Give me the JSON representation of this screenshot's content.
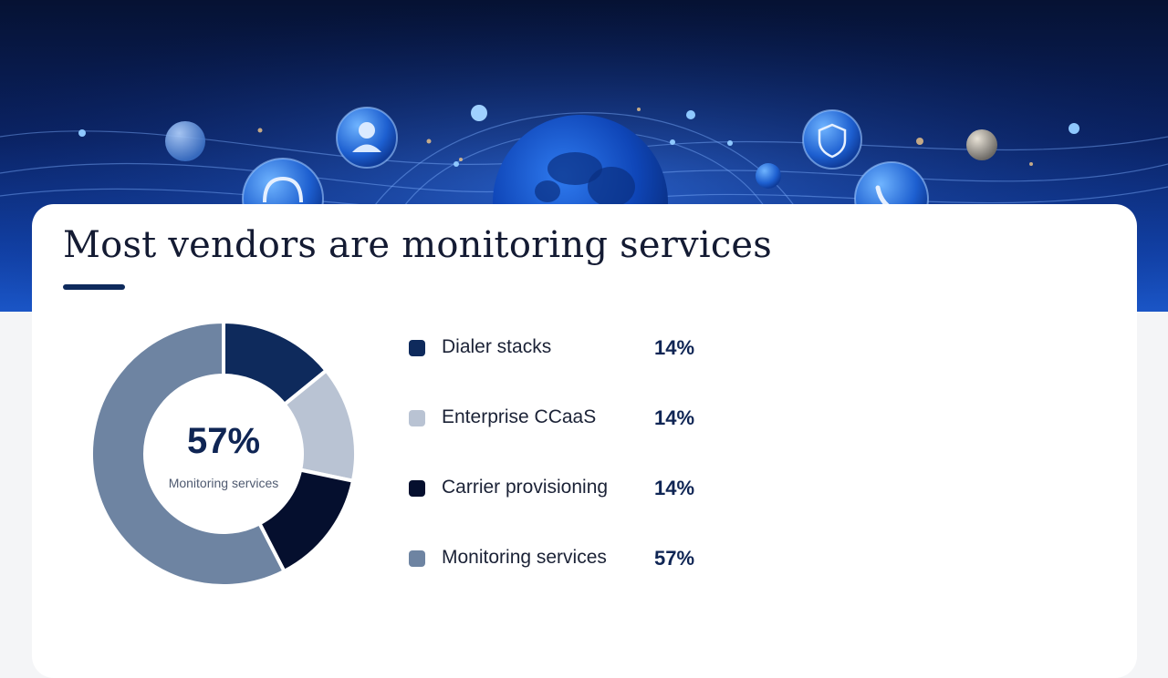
{
  "header": {
    "icons": [
      "headset-icon",
      "user-icon",
      "globe-icon",
      "shield-icon",
      "phone-icon"
    ]
  },
  "page": {
    "title": "Most vendors are monitoring services"
  },
  "chart_data": {
    "type": "pie",
    "style": "donut",
    "title": "Most vendors are monitoring services",
    "center": {
      "value": "57%",
      "label": "Monitoring services"
    },
    "categories": [
      "Dialer stacks",
      "Enterprise CCaaS",
      "Carrier provisioning",
      "Monitoring services"
    ],
    "values": [
      14,
      14,
      14,
      57
    ],
    "value_labels": [
      "14%",
      "14%",
      "14%",
      "57%"
    ],
    "colors": [
      "#0e2a5c",
      "#b9c3d3",
      "#050f2e",
      "#6e84a2"
    ],
    "legend_position": "right"
  }
}
